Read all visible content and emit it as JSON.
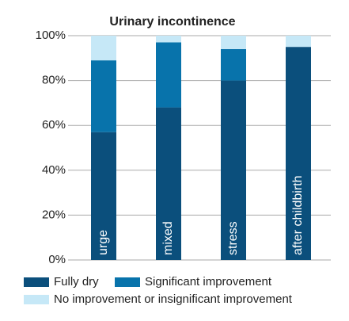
{
  "chart_data": {
    "type": "stacked-bar",
    "title": "Urinary incontinence",
    "categories": [
      "urge",
      "mixed",
      "stress",
      "after childbirth"
    ],
    "series": [
      {
        "name": "Fully dry",
        "color": "#0b4f7c",
        "values": [
          57,
          68,
          80,
          95
        ]
      },
      {
        "name": "Significant improvement",
        "color": "#0873ab",
        "values": [
          32,
          29,
          14,
          0
        ]
      },
      {
        "name": "No improvement or insignificant improvement",
        "color": "#c6e8f7",
        "values": [
          11,
          3,
          6,
          5
        ]
      }
    ],
    "ylim": [
      0,
      100
    ],
    "yticks": [
      {
        "value": 0,
        "label": "0%"
      },
      {
        "value": 20,
        "label": "20%"
      },
      {
        "value": 40,
        "label": "40%"
      },
      {
        "value": 60,
        "label": "60%"
      },
      {
        "value": 80,
        "label": "80%"
      },
      {
        "value": 100,
        "label": "100%"
      }
    ],
    "grid": true
  }
}
